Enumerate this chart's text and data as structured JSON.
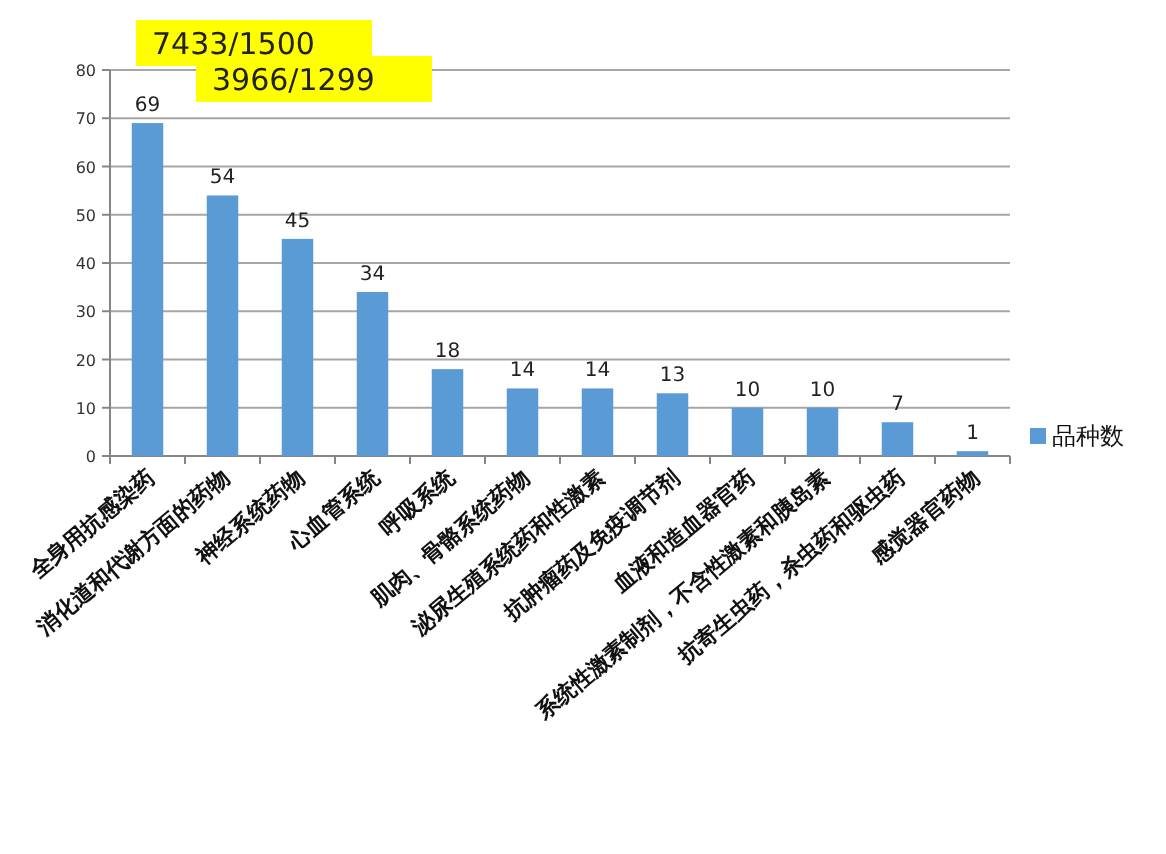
{
  "chart_data": {
    "type": "bar",
    "categories": [
      "全身用抗感染药",
      "消化道和代谢方面的药物",
      "神经系统药物",
      "心血管系统",
      "呼吸系统",
      "肌肉、骨骼系统药物",
      "泌尿生殖系统药和性激素",
      "抗肿瘤药及免疫调节剂",
      "血液和造血器官药",
      "系统性激素制剂，不含性激素和胰岛素",
      "抗寄生虫药，杀虫药和驱虫药",
      "感觉器官药物"
    ],
    "series": [
      {
        "name": "品种数",
        "color": "#5b9bd5",
        "values": [
          69,
          54,
          45,
          34,
          18,
          14,
          14,
          13,
          10,
          10,
          7,
          1
        ]
      }
    ],
    "ylim": [
      0,
      80
    ],
    "yticks": [
      0,
      10,
      20,
      30,
      40,
      50,
      60,
      70,
      80
    ],
    "grid": "y",
    "legend": "right",
    "data_labels": true,
    "annotations": [
      "7433/1500",
      "3966/1299"
    ]
  }
}
